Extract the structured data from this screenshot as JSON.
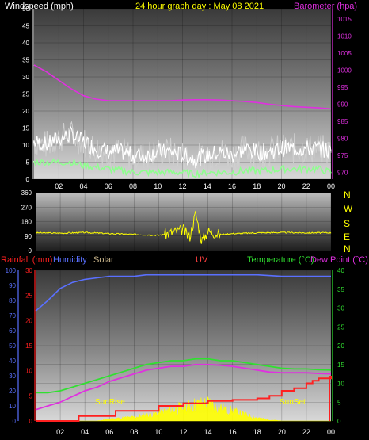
{
  "colors": {
    "windspeed": "#ffffff",
    "windgust_band": "#cfcfcf",
    "wind_avg": "#8fff8f",
    "barometer": "#e030e0",
    "direction": "#ffff00",
    "rainfall": "#ff2020",
    "humidity": "#5a70ff",
    "solar": "#c8b48a",
    "uv": "#ff4040",
    "temperature": "#30e030",
    "dewpoint": "#e030e0",
    "sun_fill": "#ffff00"
  },
  "panel1": {
    "left_label": "Windspeed (mph)",
    "title": "24 hour graph day : May 08 2021",
    "right_label": "Barometer (hpa)"
  },
  "panel3": {
    "rain_label": "Rainfall (mm)",
    "humidity_label": "Humidity",
    "solar_label": "Solar",
    "uv_label": "UV",
    "temp_label": "Temperature (°C)",
    "dew_label": "Dew Point (°C)",
    "sunrise": "SunRise",
    "sunset": "SunSet"
  },
  "compass": [
    "N",
    "W",
    "S",
    "E",
    "N"
  ],
  "chart_data": [
    {
      "type": "line",
      "name": "wind-barometer",
      "x_ticks": [
        "02",
        "04",
        "06",
        "08",
        "10",
        "12",
        "14",
        "16",
        "18",
        "20",
        "22",
        "00"
      ],
      "left_axis": {
        "label": "Windspeed (mph)",
        "ylim": [
          0,
          50
        ],
        "ticks": [
          0,
          5,
          10,
          15,
          20,
          25,
          30,
          35,
          40,
          45,
          50
        ]
      },
      "right_axis": {
        "label": "Barometer (hpa)",
        "ylim": [
          968,
          1018
        ],
        "ticks": [
          970,
          975,
          980,
          985,
          990,
          995,
          1000,
          1005,
          1010,
          1015
        ]
      },
      "series": [
        {
          "name": "Windspeed",
          "axis": "left",
          "x": [
            0,
            1,
            2,
            3,
            4,
            5,
            6,
            7,
            8,
            9,
            10,
            11,
            12,
            13,
            14,
            15,
            16,
            17,
            18,
            19,
            20,
            21,
            22,
            23,
            24
          ],
          "values": [
            11,
            10,
            12,
            13,
            11,
            9,
            8,
            8,
            7,
            7,
            8,
            8,
            7,
            6,
            7,
            8,
            7,
            9,
            8,
            8,
            9,
            9,
            9,
            9,
            8
          ]
        },
        {
          "name": "Wind average",
          "axis": "left",
          "x": [
            0,
            1,
            2,
            3,
            4,
            5,
            6,
            7,
            8,
            9,
            10,
            11,
            12,
            13,
            14,
            15,
            16,
            17,
            18,
            19,
            20,
            21,
            22,
            23,
            24
          ],
          "values": [
            5,
            5,
            5,
            5,
            4,
            3.5,
            3,
            2.5,
            2,
            2,
            2,
            2,
            2,
            1.5,
            2,
            2,
            2,
            2.5,
            2.5,
            2.5,
            3,
            3,
            3,
            3,
            2
          ]
        },
        {
          "name": "Barometer",
          "axis": "right",
          "x": [
            0,
            1,
            2,
            3,
            4,
            5,
            6,
            7,
            8,
            9,
            10,
            11,
            12,
            13,
            14,
            15,
            16,
            17,
            18,
            19,
            20,
            21,
            22,
            23,
            24
          ],
          "values": [
            1001.5,
            999.5,
            997,
            994.5,
            992.5,
            991.5,
            991,
            991,
            991,
            991,
            991,
            991,
            991.2,
            991.3,
            991.3,
            991.2,
            991,
            990.8,
            990.5,
            990,
            989.6,
            989.3,
            989.1,
            988.9,
            988.6
          ]
        }
      ]
    },
    {
      "type": "line",
      "name": "wind-direction",
      "y_ticks": [
        360,
        270,
        180,
        90,
        0
      ],
      "ylim": [
        0,
        360
      ],
      "series": [
        {
          "name": "Wind direction",
          "x": [
            0,
            2,
            4,
            6,
            8,
            10,
            11,
            12,
            12.5,
            13,
            13.5,
            14,
            15,
            16,
            18,
            20,
            22,
            24
          ],
          "values": [
            110,
            108,
            112,
            105,
            100,
            95,
            110,
            130,
            80,
            230,
            60,
            120,
            100,
            105,
            110,
            112,
            110,
            110
          ]
        }
      ]
    },
    {
      "type": "line",
      "name": "rain-humidity-temp",
      "x_ticks": [
        "02",
        "04",
        "06",
        "08",
        "10",
        "12",
        "14",
        "16",
        "18",
        "20",
        "22",
        "00"
      ],
      "left_axis_rain": {
        "label": "Rainfall (mm)",
        "ylim": [
          0,
          30
        ],
        "ticks": [
          0,
          5,
          10,
          15,
          20,
          25,
          30
        ]
      },
      "left_axis_humidity": {
        "label": "Humidity",
        "ylim": [
          0,
          100
        ],
        "ticks": [
          0,
          10,
          20,
          30,
          40,
          50,
          60,
          70,
          80,
          90,
          100
        ]
      },
      "right_axis": {
        "label": "Temperature (°C)",
        "ylim": [
          0,
          40
        ],
        "ticks": [
          0,
          5,
          10,
          15,
          20,
          25,
          30,
          35,
          40
        ]
      },
      "series": [
        {
          "name": "Humidity",
          "axis": "humidity",
          "x": [
            0,
            1,
            2,
            3,
            4,
            5,
            6,
            7,
            8,
            9,
            10,
            12,
            14,
            16,
            18,
            20,
            22,
            24
          ],
          "values": [
            73,
            80,
            88,
            92,
            94,
            95,
            96,
            96,
            96,
            97,
            97,
            97,
            97,
            97,
            97,
            96,
            96,
            96
          ]
        },
        {
          "name": "Temperature",
          "axis": "right",
          "x": [
            0,
            1,
            2,
            3,
            4,
            5,
            6,
            7,
            8,
            9,
            10,
            11,
            12,
            13,
            14,
            15,
            16,
            17,
            18,
            19,
            20,
            21,
            22,
            23,
            24
          ],
          "values": [
            7.5,
            7.5,
            8,
            9,
            10,
            11,
            12,
            13,
            14,
            15,
            15.5,
            16,
            16,
            16.5,
            16.5,
            16,
            16,
            15.5,
            15,
            14.5,
            14,
            13.8,
            13.8,
            13.6,
            13.5
          ]
        },
        {
          "name": "Dew Point",
          "axis": "right",
          "x": [
            0,
            1,
            2,
            3,
            4,
            5,
            6,
            7,
            8,
            9,
            10,
            11,
            12,
            13,
            14,
            15,
            16,
            17,
            18,
            19,
            20,
            21,
            22,
            23,
            24
          ],
          "values": [
            3,
            4,
            5,
            6.5,
            8,
            9,
            10.5,
            11.5,
            12.5,
            13.5,
            14,
            14.5,
            14.5,
            15,
            15,
            14.8,
            14.5,
            14,
            13.5,
            13,
            12.8,
            12.8,
            12.8,
            12.6,
            12.5
          ]
        },
        {
          "name": "Rainfall",
          "axis": "rain",
          "x": [
            0,
            3,
            3.5,
            6,
            6.5,
            9,
            10,
            12,
            14,
            16,
            18,
            19,
            20,
            21,
            22,
            22.5,
            23,
            24
          ],
          "values": [
            0,
            0,
            1,
            1,
            2,
            2,
            3,
            3.5,
            4,
            4.2,
            4.5,
            5,
            6,
            6.5,
            7.5,
            8,
            8.5,
            9
          ]
        },
        {
          "name": "Solar",
          "axis": "right",
          "x": [
            0,
            5,
            6,
            8,
            10,
            11,
            12,
            13,
            14,
            15,
            16,
            17,
            18,
            19,
            20,
            24
          ],
          "values": [
            0,
            0,
            0.5,
            1,
            2,
            2.8,
            3.5,
            4.2,
            4.5,
            3.5,
            2.5,
            1.6,
            0.8,
            0.3,
            0,
            0
          ]
        }
      ]
    }
  ]
}
